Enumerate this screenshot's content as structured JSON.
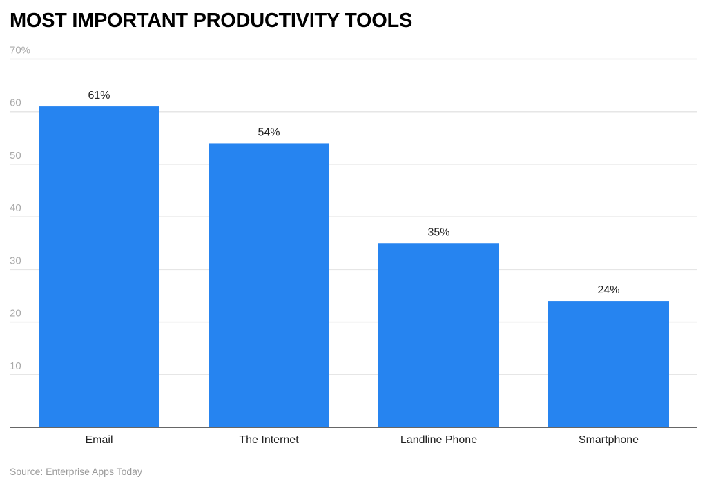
{
  "chart_data": {
    "type": "bar",
    "title": "MOST IMPORTANT PRODUCTIVITY TOOLS",
    "categories": [
      "Email",
      "The Internet",
      "Landline Phone",
      "Smartphone"
    ],
    "values": [
      61,
      54,
      35,
      24
    ],
    "data_labels": [
      "61%",
      "54%",
      "35%",
      "24%"
    ],
    "y_ticks": [
      10,
      20,
      30,
      40,
      50,
      60,
      70
    ],
    "y_tick_labels": [
      "10",
      "20",
      "30",
      "40",
      "50",
      "60",
      "70%"
    ],
    "ylim": [
      0,
      70
    ],
    "xlabel": "",
    "ylabel": "",
    "grid": true,
    "legend": "none",
    "bar_color": "#2684F0",
    "source": "Source: Enterprise Apps Today"
  }
}
